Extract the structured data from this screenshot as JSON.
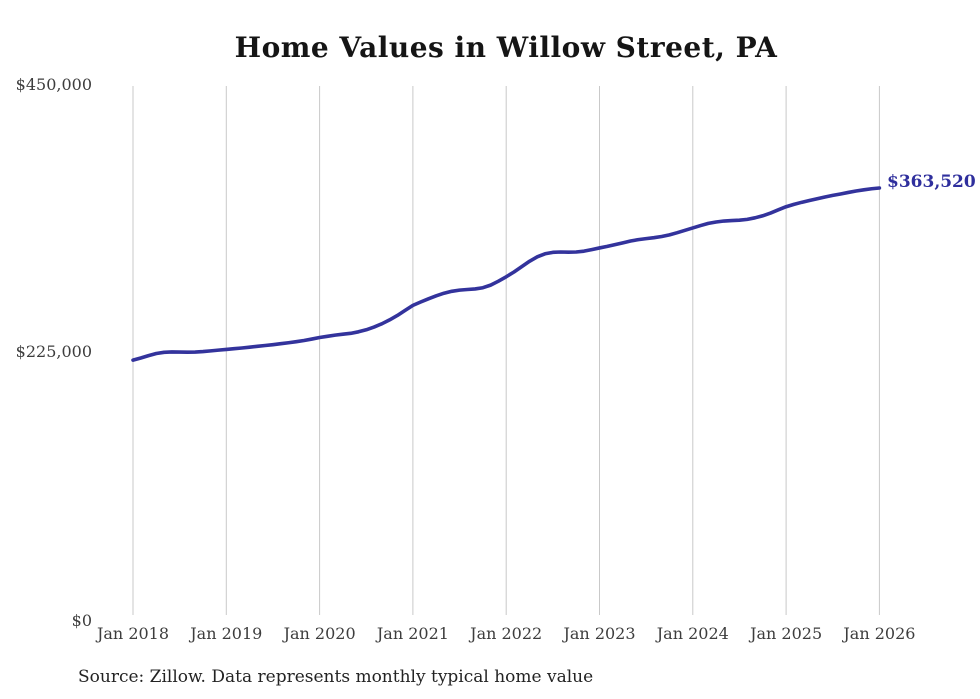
{
  "title": "Home Values in Willow Street, PA",
  "source_note": "Source: Zillow. Data represents monthly typical home value",
  "end_label": "$363,520",
  "colors": {
    "line": "#33339c",
    "end_label": "#2f2f9d",
    "grid": "#c9c9c9",
    "axis_text": "#3d3d3d",
    "title_text": "#151515"
  },
  "y_axis": {
    "tick_450": "$450,000",
    "tick_225": "$225,000",
    "tick_0": "$0"
  },
  "chart_data": {
    "type": "line",
    "title": "Home Values in Willow Street, PA",
    "xlabel": "",
    "ylabel": "",
    "ylim": [
      0,
      450000
    ],
    "y_tick_labels": [
      "$0",
      "$225,000",
      "$450,000"
    ],
    "grid": "vertical-only",
    "legend_position": "none",
    "x_tick_labels": [
      "Jan 2018",
      "Jan 2019",
      "Jan 2020",
      "Jan 2021",
      "Jan 2022",
      "Jan 2023",
      "Jan 2024",
      "Jan 2025",
      "Jan 2026"
    ],
    "x_start_month": "2018-01",
    "x_end_month": "2026-01",
    "final_value": 363520,
    "final_value_label": "$363,520",
    "series": [
      {
        "name": "Monthly typical home value",
        "values": [
          219000,
          220800,
          222800,
          224600,
          225600,
          225900,
          225800,
          225700,
          225800,
          226200,
          226800,
          227400,
          228000,
          228600,
          229200,
          229900,
          230600,
          231300,
          232000,
          232800,
          233600,
          234500,
          235500,
          236700,
          238000,
          239000,
          240000,
          240800,
          241500,
          242800,
          244500,
          246800,
          249500,
          252800,
          256500,
          260800,
          265000,
          267800,
          270500,
          273000,
          275200,
          276800,
          277800,
          278300,
          278800,
          279800,
          282000,
          285300,
          289000,
          293000,
          297500,
          302000,
          305800,
          308300,
          309500,
          309800,
          309600,
          309800,
          310500,
          311800,
          313200,
          314500,
          316000,
          317500,
          319000,
          320200,
          321000,
          321800,
          322800,
          324200,
          326000,
          328000,
          330000,
          332000,
          333800,
          335000,
          335800,
          336200,
          336500,
          337200,
          338500,
          340200,
          342500,
          345200,
          347800,
          349800,
          351500,
          353000,
          354500,
          356000,
          357300,
          358500,
          359800,
          361000,
          362000,
          362900,
          363520
        ]
      }
    ]
  }
}
